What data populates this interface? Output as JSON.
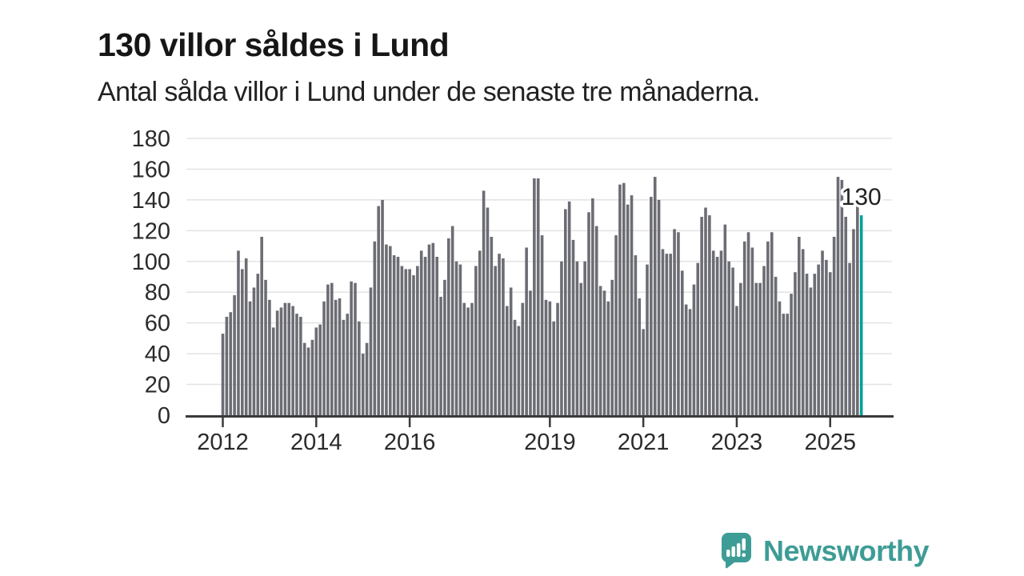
{
  "header": {
    "title": "130 villor såldes i Lund",
    "subtitle": "Antal sålda villor i Lund under de senaste tre månaderna."
  },
  "chart_data": {
    "type": "bar",
    "title": "130 villor såldes i Lund",
    "subtitle": "Antal sålda villor i Lund under de senaste tre månaderna.",
    "frequency": "monthly",
    "start_month": "2012-01",
    "end_month": "2025-09",
    "values": [
      53,
      64,
      67,
      78,
      107,
      95,
      102,
      74,
      83,
      92,
      116,
      88,
      75,
      57,
      68,
      70,
      73,
      73,
      71,
      66,
      64,
      47,
      44,
      49,
      57,
      59,
      74,
      85,
      86,
      75,
      76,
      62,
      66,
      87,
      86,
      61,
      40,
      47,
      83,
      113,
      136,
      140,
      111,
      110,
      104,
      103,
      97,
      95,
      95,
      91,
      97,
      107,
      103,
      111,
      112,
      103,
      77,
      88,
      115,
      123,
      100,
      98,
      73,
      70,
      73,
      97,
      107,
      146,
      135,
      116,
      97,
      105,
      102,
      71,
      83,
      62,
      58,
      73,
      109,
      81,
      154,
      154,
      117,
      75,
      74,
      61,
      73,
      100,
      134,
      139,
      114,
      100,
      86,
      100,
      132,
      141,
      123,
      84,
      81,
      74,
      88,
      117,
      150,
      151,
      137,
      143,
      104,
      76,
      56,
      98,
      142,
      155,
      140,
      108,
      105,
      105,
      121,
      119,
      94,
      72,
      69,
      85,
      99,
      129,
      135,
      130,
      107,
      103,
      107,
      124,
      100,
      96,
      71,
      86,
      113,
      119,
      109,
      86,
      86,
      97,
      113,
      119,
      90,
      74,
      66,
      66,
      79,
      93,
      116,
      108,
      92,
      83,
      92,
      98,
      107,
      101,
      93,
      116,
      155,
      153,
      129,
      99,
      121,
      136,
      130
    ],
    "highlight": {
      "index": 164,
      "value": 130,
      "label": "130"
    },
    "ylim": [
      0,
      180
    ],
    "yticks": [
      0,
      20,
      40,
      60,
      80,
      100,
      120,
      140,
      160,
      180
    ],
    "xticks": [
      {
        "label": "2012",
        "month_index": 0
      },
      {
        "label": "2014",
        "month_index": 24
      },
      {
        "label": "2016",
        "month_index": 48
      },
      {
        "label": "2019",
        "month_index": 84
      },
      {
        "label": "2021",
        "month_index": 108
      },
      {
        "label": "2023",
        "month_index": 132
      },
      {
        "label": "2025",
        "month_index": 156
      }
    ],
    "grid": "horizontal",
    "legend": "none",
    "colors": {
      "bar": "#6C6D74",
      "highlight": "#00A099",
      "gridline": "#E3E3E3",
      "axis": "#3A3A3A",
      "tick_label": "#2B2B2B",
      "annotation": "#222222"
    }
  },
  "footer": {
    "brand": "Newsworthy",
    "logo_color": "#3E9C96"
  }
}
